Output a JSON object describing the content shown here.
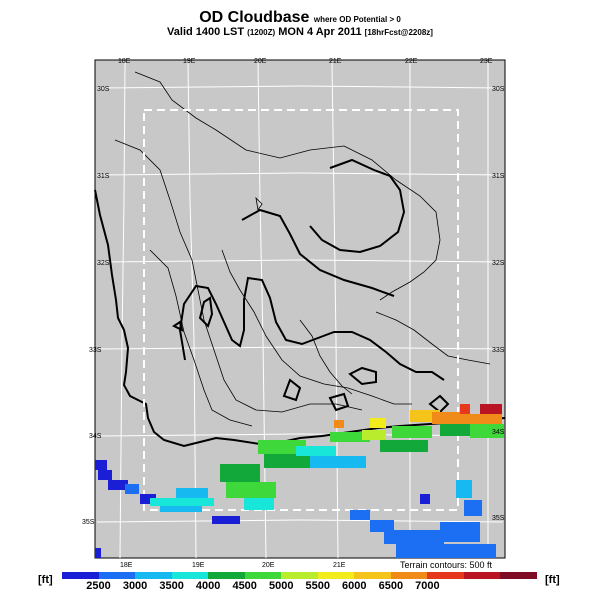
{
  "title": {
    "main": "OD Cloudbase",
    "subtitle": "where OD Potential > 0"
  },
  "valid": {
    "prefix": "Valid 1400 LST",
    "utc": "(1200Z)",
    "date": "MON 4 Apr 2011",
    "forecast": "[18hrFcst@2208z]"
  },
  "map": {
    "top_lon_labels": [
      "18E",
      "19E",
      "20E",
      "21E",
      "22E",
      "23E"
    ],
    "bottom_lon_labels": [
      "18E",
      "19E",
      "20E",
      "21E"
    ],
    "left_lat_labels": [
      "30S",
      "31S",
      "32S",
      "33S",
      "34S",
      "35S"
    ],
    "right_lat_labels": [
      "30S",
      "31S",
      "32S",
      "33S",
      "34S",
      "35S"
    ],
    "terrain_note": "Terrain contours: 500 ft"
  },
  "colorbar": {
    "unit_left": "[ft]",
    "unit_right": "[ft]",
    "ticks": [
      "2500",
      "3000",
      "3500",
      "4000",
      "4500",
      "5000",
      "5500",
      "6000",
      "6500",
      "7000"
    ],
    "colors": [
      "#1a1fd6",
      "#1c6ff2",
      "#16b9f0",
      "#18e6d8",
      "#12a83a",
      "#3fd83a",
      "#b8ec2c",
      "#f2ec1c",
      "#f5c41a",
      "#f08a18",
      "#e6381c",
      "#b81424",
      "#7e0c24"
    ]
  }
}
